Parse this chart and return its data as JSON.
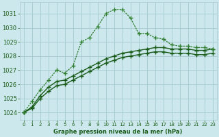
{
  "title": "Graphe pression niveau de la mer (hPa)",
  "bg_color": "#cce8ec",
  "grid_color": "#aacdd4",
  "line_color_dark": "#1a5c1a",
  "line_color_mid": "#2e7d2e",
  "xlim": [
    -0.5,
    23.5
  ],
  "ylim": [
    1023.5,
    1031.8
  ],
  "yticks": [
    1024,
    1025,
    1026,
    1027,
    1028,
    1029,
    1030,
    1031
  ],
  "xticks": [
    0,
    1,
    2,
    3,
    4,
    5,
    6,
    7,
    8,
    9,
    10,
    11,
    12,
    13,
    14,
    15,
    16,
    17,
    18,
    19,
    20,
    21,
    22,
    23
  ],
  "series_dotted": {
    "x": [
      0,
      1,
      2,
      3,
      4,
      5,
      6,
      7,
      8,
      9,
      10,
      11,
      12,
      13,
      14,
      15,
      16,
      17,
      18,
      19,
      20,
      21,
      22,
      23
    ],
    "y": [
      1024.0,
      1024.8,
      1025.6,
      1026.3,
      1027.0,
      1026.8,
      1027.3,
      1029.0,
      1029.3,
      1030.1,
      1031.0,
      1031.3,
      1031.3,
      1030.7,
      1029.6,
      1029.6,
      1029.3,
      1029.2,
      1028.8,
      1028.7,
      1028.7,
      1028.6,
      1028.6,
      1028.5
    ]
  },
  "series_solid1": {
    "x": [
      0,
      1,
      2,
      3,
      4,
      5,
      6,
      7,
      8,
      9,
      10,
      11,
      12,
      13,
      14,
      15,
      16,
      17,
      18,
      19,
      20,
      21,
      22,
      23
    ],
    "y": [
      1024.0,
      1024.4,
      1025.2,
      1025.8,
      1026.2,
      1026.3,
      1026.6,
      1026.9,
      1027.2,
      1027.5,
      1027.8,
      1028.0,
      1028.2,
      1028.3,
      1028.4,
      1028.5,
      1028.6,
      1028.6,
      1028.5,
      1028.5,
      1028.5,
      1028.4,
      1028.4,
      1028.5
    ]
  },
  "series_solid2": {
    "x": [
      0,
      1,
      2,
      3,
      4,
      5,
      6,
      7,
      8,
      9,
      10,
      11,
      12,
      13,
      14,
      15,
      16,
      17,
      18,
      19,
      20,
      21,
      22,
      23
    ],
    "y": [
      1024.0,
      1024.3,
      1025.0,
      1025.5,
      1025.9,
      1026.0,
      1026.3,
      1026.6,
      1026.9,
      1027.2,
      1027.5,
      1027.7,
      1027.9,
      1028.0,
      1028.1,
      1028.2,
      1028.3,
      1028.3,
      1028.2,
      1028.2,
      1028.2,
      1028.1,
      1028.1,
      1028.2
    ]
  }
}
